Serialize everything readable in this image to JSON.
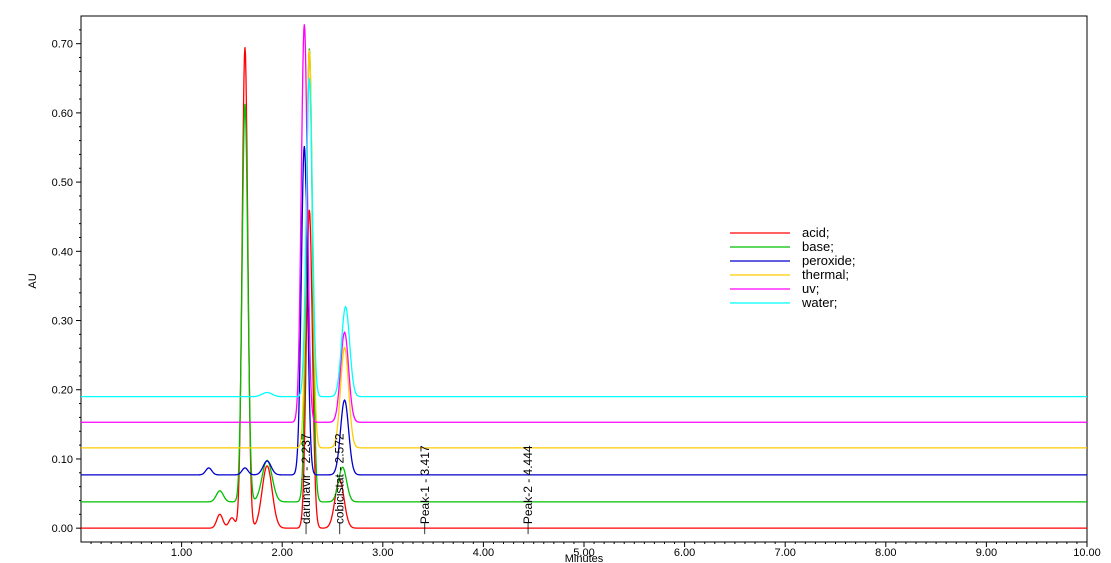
{
  "chart_data": {
    "type": "line",
    "title": "",
    "xlabel": "Minutes",
    "ylabel": "AU",
    "xlim": [
      0.0,
      10.0
    ],
    "ylim": [
      -0.02,
      0.74
    ],
    "x_ticks": [
      "1.00",
      "2.00",
      "3.00",
      "4.00",
      "5.00",
      "6.00",
      "7.00",
      "8.00",
      "9.00",
      "10.00"
    ],
    "y_ticks": [
      "0.00",
      "0.10",
      "0.20",
      "0.30",
      "0.40",
      "0.50",
      "0.60",
      "0.70"
    ],
    "grid": false,
    "legend_position": "right",
    "series": [
      {
        "name": "acid;",
        "color": "#ff0000",
        "baseline": 0.0,
        "peaks": [
          [
            1.38,
            0.02,
            0.03
          ],
          [
            1.5,
            0.015,
            0.03
          ],
          [
            1.63,
            0.695,
            0.028
          ],
          [
            1.85,
            0.09,
            0.05
          ],
          [
            2.27,
            0.46,
            0.03
          ],
          [
            2.57,
            0.07,
            0.045
          ]
        ]
      },
      {
        "name": "base;",
        "color": "#00c000",
        "baseline": 0.038,
        "peaks": [
          [
            1.38,
            0.016,
            0.035
          ],
          [
            1.63,
            0.575,
            0.028
          ],
          [
            1.85,
            0.06,
            0.05
          ],
          [
            2.27,
            0.655,
            0.03
          ],
          [
            2.6,
            0.05,
            0.04
          ]
        ]
      },
      {
        "name": "peroxide;",
        "color": "#0000cc",
        "baseline": 0.077,
        "peaks": [
          [
            1.27,
            0.01,
            0.03
          ],
          [
            1.63,
            0.01,
            0.03
          ],
          [
            1.85,
            0.02,
            0.04
          ],
          [
            2.22,
            0.475,
            0.03
          ],
          [
            2.62,
            0.108,
            0.04
          ]
        ]
      },
      {
        "name": "thermal;",
        "color": "#ffcc00",
        "baseline": 0.116,
        "peaks": [
          [
            2.27,
            0.575,
            0.03
          ],
          [
            2.62,
            0.145,
            0.04
          ]
        ]
      },
      {
        "name": "uv;",
        "color": "#ff00ff",
        "baseline": 0.153,
        "peaks": [
          [
            2.22,
            0.575,
            0.03
          ],
          [
            2.62,
            0.13,
            0.04
          ]
        ]
      },
      {
        "name": "water;",
        "color": "#00ffff",
        "baseline": 0.19,
        "peaks": [
          [
            1.85,
            0.006,
            0.05
          ],
          [
            2.27,
            0.46,
            0.03
          ],
          [
            2.63,
            0.13,
            0.04
          ]
        ]
      }
    ],
    "annotations": [
      {
        "text": "darunavir - 2.237",
        "x": 2.237
      },
      {
        "text": "cobicistat - 2.572",
        "x": 2.572
      },
      {
        "text": "Peak-1 - 3.417",
        "x": 3.417
      },
      {
        "text": "Peak-2 - 4.444",
        "x": 4.444
      }
    ]
  }
}
